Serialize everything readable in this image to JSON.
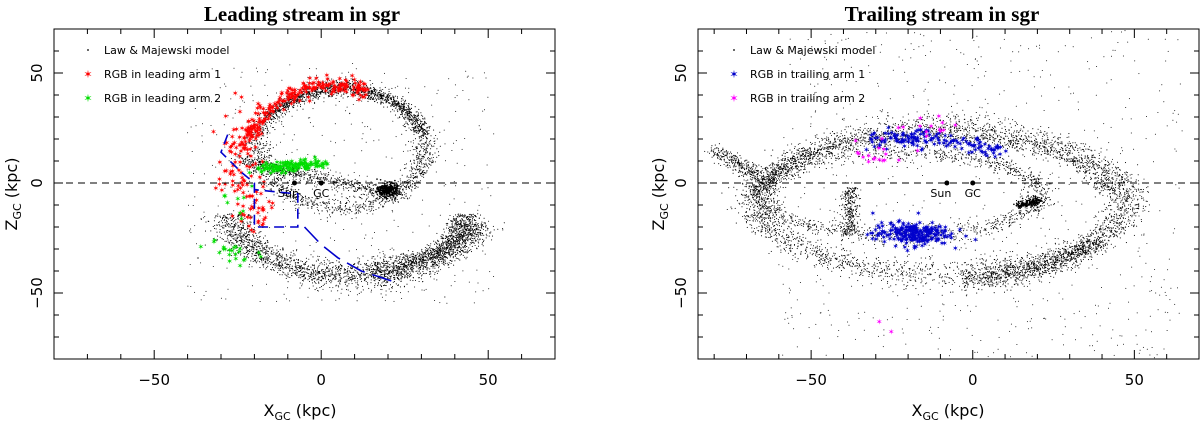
{
  "chart_data": [
    {
      "type": "scatter",
      "title": "Leading stream in sgr",
      "xlabel": "X",
      "xlabel_sub": "GC",
      "xlabel_unit": " (kpc)",
      "ylabel": "Z",
      "ylabel_sub": "GC",
      "ylabel_unit": " (kpc)",
      "xlim": [
        -80,
        70
      ],
      "ylim": [
        -80,
        70
      ],
      "xticks": [
        -50,
        0,
        50
      ],
      "yticks": [
        -50,
        0,
        50
      ],
      "grid": false,
      "legend_position": "top-left",
      "reference_line": {
        "z": 0,
        "style": "dashed"
      },
      "markers": [
        {
          "label": "Sun",
          "x": -8,
          "z": 0
        },
        {
          "label": "GC",
          "x": 0,
          "z": 0
        }
      ],
      "series": [
        {
          "name": "Law & Majewski model",
          "color": "#000000",
          "marker": "dot"
        },
        {
          "name": "RGB in leading arm 1",
          "color": "#ff0000",
          "marker": "star"
        },
        {
          "name": "RGB in leading arm 2",
          "color": "#00dd00",
          "marker": "star"
        }
      ],
      "selection_outline": {
        "color": "#0000cc",
        "path": [
          [
            -28,
            22
          ],
          [
            -30,
            14
          ],
          [
            -24,
            5
          ],
          [
            -20,
            0
          ],
          [
            -20,
            -20
          ],
          [
            -7,
            -20
          ],
          [
            -7,
            -5
          ],
          [
            -20,
            -3
          ]
        ],
        "arc": [
          [
            -5,
            -20
          ],
          [
            0,
            -28
          ],
          [
            5,
            -34
          ],
          [
            12,
            -40
          ],
          [
            22,
            -45
          ]
        ]
      }
    },
    {
      "type": "scatter",
      "title": "Trailing stream in sgr",
      "xlabel": "X",
      "xlabel_sub": "GC",
      "xlabel_unit": " (kpc)",
      "ylabel": "Z",
      "ylabel_sub": "GC",
      "ylabel_unit": " (kpc)",
      "xlim": [
        -85,
        70
      ],
      "ylim": [
        -80,
        70
      ],
      "xticks": [
        -50,
        0,
        50
      ],
      "yticks": [
        -50,
        0,
        50
      ],
      "grid": false,
      "legend_position": "top-left",
      "reference_line": {
        "z": 0,
        "style": "dashed"
      },
      "markers": [
        {
          "label": "Sun",
          "x": -8,
          "z": 0
        },
        {
          "label": "GC",
          "x": 0,
          "z": 0
        }
      ],
      "series": [
        {
          "name": "Law & Majewski model",
          "color": "#000000",
          "marker": "dot"
        },
        {
          "name": "RGB in trailing arm 1",
          "color": "#0000cc",
          "marker": "star"
        },
        {
          "name": "RGB in trailing arm 2",
          "color": "#ff00ff",
          "marker": "star"
        }
      ]
    }
  ]
}
